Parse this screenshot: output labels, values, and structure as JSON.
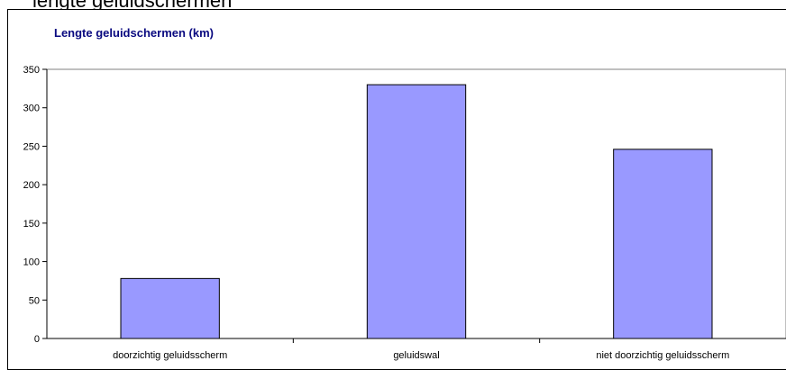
{
  "page": {
    "top_fragment_text": "lengte geluidschermen"
  },
  "chart_data": {
    "type": "bar",
    "title": "Lengte geluidschermen (km)",
    "xlabel": "",
    "ylabel": "",
    "categories": [
      "doorzichtig geluidsscherm",
      "geluidswal",
      "niet doorzichtig geluidsscherm"
    ],
    "values": [
      78,
      330,
      246
    ],
    "ylim": [
      0,
      350
    ],
    "yticks": [
      0,
      50,
      100,
      150,
      200,
      250,
      300,
      350
    ],
    "grid": false,
    "legend": "none",
    "colors": {
      "bar_fill": "#9999ff",
      "bar_stroke": "#000000",
      "plot_area_bg": "#ffffff",
      "title": "#0a0a80"
    }
  }
}
